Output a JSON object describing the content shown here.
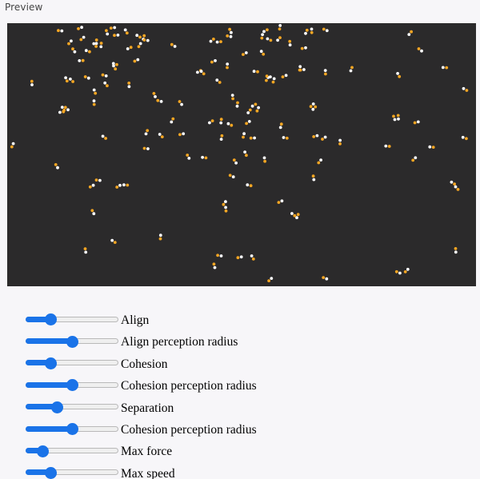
{
  "preview": {
    "label": "Preview"
  },
  "canvas": {
    "background": "#2b2a2b",
    "boid_colors": [
      "#f5a623",
      "#ffffff"
    ],
    "boid_count": 140
  },
  "controls": [
    {
      "label": "Align",
      "value": 0.24
    },
    {
      "label": "Align perception radius",
      "value": 0.5
    },
    {
      "label": "Cohesion",
      "value": 0.24
    },
    {
      "label": "Cohesion perception radius",
      "value": 0.5
    },
    {
      "label": "Separation",
      "value": 0.32
    },
    {
      "label": "Cohesion perception radius",
      "value": 0.5
    },
    {
      "label": "Max force",
      "value": 0.14
    },
    {
      "label": "Max speed",
      "value": 0.24
    }
  ],
  "accent_color": "#1a73e8"
}
